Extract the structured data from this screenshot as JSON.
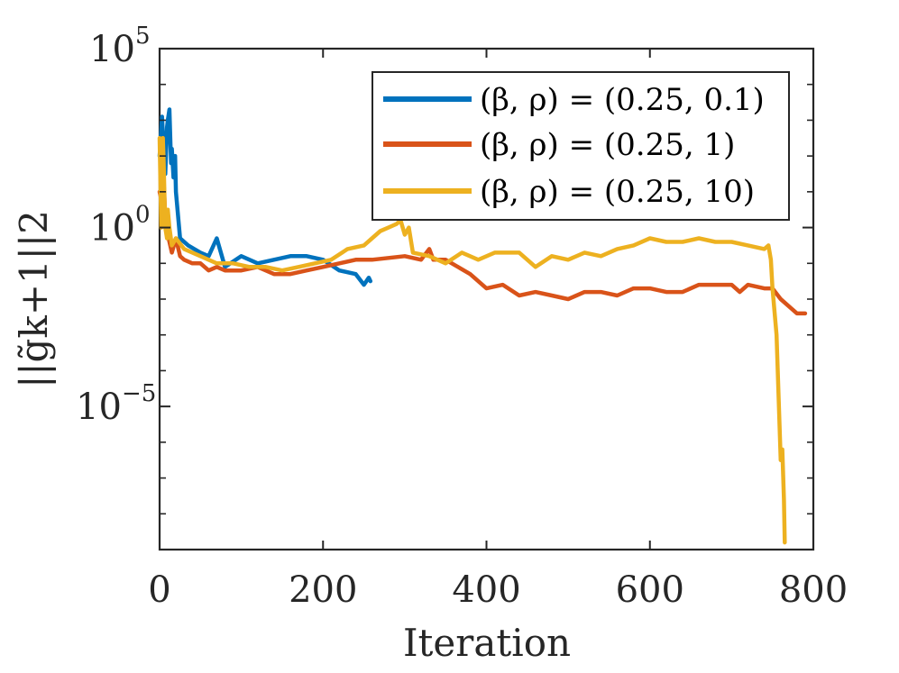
{
  "chart_data": {
    "type": "line",
    "xlabel": "Iteration",
    "ylabel": "||g̃k+1||2",
    "xlim": [
      0,
      800
    ],
    "ylim_log10": [
      -9,
      5
    ],
    "yscale": "log",
    "xticks": [
      "0",
      "200",
      "400",
      "600",
      "800"
    ],
    "yticks": [
      {
        "base": "10",
        "exp": "5",
        "value": 5
      },
      {
        "base": "10",
        "exp": "0",
        "value": 0
      },
      {
        "base": "10",
        "exp": "−5",
        "value": -5
      }
    ],
    "yminor_log10": [
      4,
      3,
      2,
      1,
      -1,
      -2,
      -3,
      -4,
      -6,
      -7,
      -8
    ],
    "grid": false,
    "legend_position": "top-right",
    "series": [
      {
        "name": "(β, ρ) = (0.25, 0.1)",
        "color": "#0072BD",
        "log10_y": [
          [
            0,
            2.0
          ],
          [
            3,
            3.1
          ],
          [
            5,
            2.2
          ],
          [
            7,
            1.5
          ],
          [
            9,
            2.8
          ],
          [
            10,
            3.0
          ],
          [
            12,
            3.3
          ],
          [
            14,
            1.8
          ],
          [
            15,
            2.2
          ],
          [
            17,
            1.4
          ],
          [
            19,
            2.0
          ],
          [
            20,
            1.0
          ],
          [
            25,
            -0.3
          ],
          [
            35,
            -0.5
          ],
          [
            50,
            -0.7
          ],
          [
            60,
            -0.8
          ],
          [
            70,
            -0.3
          ],
          [
            80,
            -1.1
          ],
          [
            100,
            -0.8
          ],
          [
            120,
            -1.0
          ],
          [
            140,
            -0.9
          ],
          [
            160,
            -0.8
          ],
          [
            180,
            -0.8
          ],
          [
            200,
            -0.9
          ],
          [
            220,
            -1.2
          ],
          [
            240,
            -1.3
          ],
          [
            250,
            -1.6
          ],
          [
            256,
            -1.4
          ],
          [
            258,
            -1.5
          ]
        ]
      },
      {
        "name": "(β, ρ) = (0.25, 1)",
        "color": "#D95319",
        "log10_y": [
          [
            0,
            1.0
          ],
          [
            2,
            0.8
          ],
          [
            4,
            2.5
          ],
          [
            5,
            1.3
          ],
          [
            7,
            0.3
          ],
          [
            10,
            -0.2
          ],
          [
            15,
            -0.7
          ],
          [
            20,
            -0.3
          ],
          [
            25,
            -0.8
          ],
          [
            30,
            -0.9
          ],
          [
            40,
            -1.0
          ],
          [
            50,
            -1.0
          ],
          [
            60,
            -1.2
          ],
          [
            70,
            -1.1
          ],
          [
            80,
            -1.2
          ],
          [
            100,
            -1.2
          ],
          [
            120,
            -1.1
          ],
          [
            140,
            -1.3
          ],
          [
            160,
            -1.3
          ],
          [
            180,
            -1.2
          ],
          [
            200,
            -1.1
          ],
          [
            220,
            -1.0
          ],
          [
            240,
            -0.9
          ],
          [
            260,
            -0.9
          ],
          [
            280,
            -0.85
          ],
          [
            300,
            -0.8
          ],
          [
            320,
            -0.9
          ],
          [
            330,
            -0.6
          ],
          [
            335,
            -0.9
          ],
          [
            350,
            -0.9
          ],
          [
            380,
            -1.3
          ],
          [
            400,
            -1.7
          ],
          [
            420,
            -1.6
          ],
          [
            440,
            -1.9
          ],
          [
            460,
            -1.8
          ],
          [
            480,
            -1.9
          ],
          [
            500,
            -2.0
          ],
          [
            520,
            -1.8
          ],
          [
            540,
            -1.8
          ],
          [
            560,
            -1.9
          ],
          [
            580,
            -1.7
          ],
          [
            600,
            -1.7
          ],
          [
            620,
            -1.8
          ],
          [
            640,
            -1.8
          ],
          [
            660,
            -1.6
          ],
          [
            680,
            -1.6
          ],
          [
            700,
            -1.6
          ],
          [
            710,
            -1.8
          ],
          [
            720,
            -1.6
          ],
          [
            740,
            -1.7
          ],
          [
            750,
            -1.7
          ],
          [
            760,
            -2.0
          ],
          [
            770,
            -2.2
          ],
          [
            780,
            -2.4
          ],
          [
            790,
            -2.4
          ]
        ]
      },
      {
        "name": "(β, ρ) = (0.25, 10)",
        "color": "#EDB120",
        "log10_y": [
          [
            0,
            2.5
          ],
          [
            2,
            0.0
          ],
          [
            4,
            2.5
          ],
          [
            5,
            1.8
          ],
          [
            7,
            0.0
          ],
          [
            9,
            -0.3
          ],
          [
            10,
            0.5
          ],
          [
            12,
            0.0
          ],
          [
            15,
            -0.5
          ],
          [
            20,
            -0.3
          ],
          [
            30,
            -0.6
          ],
          [
            50,
            -0.8
          ],
          [
            70,
            -1.0
          ],
          [
            90,
            -1.0
          ],
          [
            110,
            -1.1
          ],
          [
            130,
            -1.1
          ],
          [
            150,
            -1.2
          ],
          [
            170,
            -1.1
          ],
          [
            190,
            -1.0
          ],
          [
            210,
            -0.9
          ],
          [
            230,
            -0.6
          ],
          [
            250,
            -0.5
          ],
          [
            260,
            -0.3
          ],
          [
            270,
            -0.1
          ],
          [
            280,
            0.0
          ],
          [
            290,
            0.1
          ],
          [
            295,
            0.2
          ],
          [
            300,
            -0.2
          ],
          [
            305,
            0.0
          ],
          [
            310,
            -0.7
          ],
          [
            330,
            -0.8
          ],
          [
            350,
            -1.0
          ],
          [
            370,
            -0.7
          ],
          [
            390,
            -0.9
          ],
          [
            410,
            -0.7
          ],
          [
            440,
            -0.7
          ],
          [
            460,
            -1.1
          ],
          [
            480,
            -0.8
          ],
          [
            500,
            -0.9
          ],
          [
            520,
            -0.7
          ],
          [
            540,
            -0.8
          ],
          [
            560,
            -0.6
          ],
          [
            580,
            -0.5
          ],
          [
            600,
            -0.3
          ],
          [
            620,
            -0.4
          ],
          [
            640,
            -0.4
          ],
          [
            660,
            -0.3
          ],
          [
            680,
            -0.4
          ],
          [
            700,
            -0.4
          ],
          [
            720,
            -0.5
          ],
          [
            740,
            -0.6
          ],
          [
            745,
            -0.5
          ],
          [
            748,
            -0.9
          ],
          [
            750,
            -1.7
          ],
          [
            755,
            -3.0
          ],
          [
            760,
            -6.5
          ],
          [
            762,
            -6.2
          ],
          [
            764,
            -7.6
          ],
          [
            765,
            -8.8
          ]
        ]
      }
    ]
  }
}
